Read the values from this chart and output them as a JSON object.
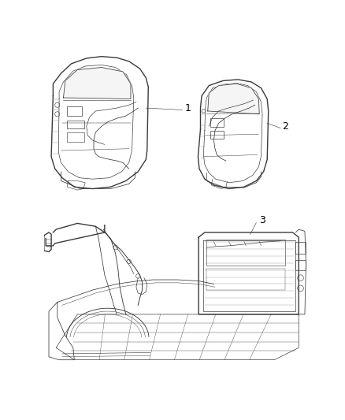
{
  "background_color": "#ffffff",
  "fig_width": 4.38,
  "fig_height": 5.33,
  "dpi": 100,
  "label1": "1",
  "label2": "2",
  "label3": "3",
  "line_color": "#3a3a3a",
  "line_color_light": "#888888",
  "label_fontsize": 9
}
